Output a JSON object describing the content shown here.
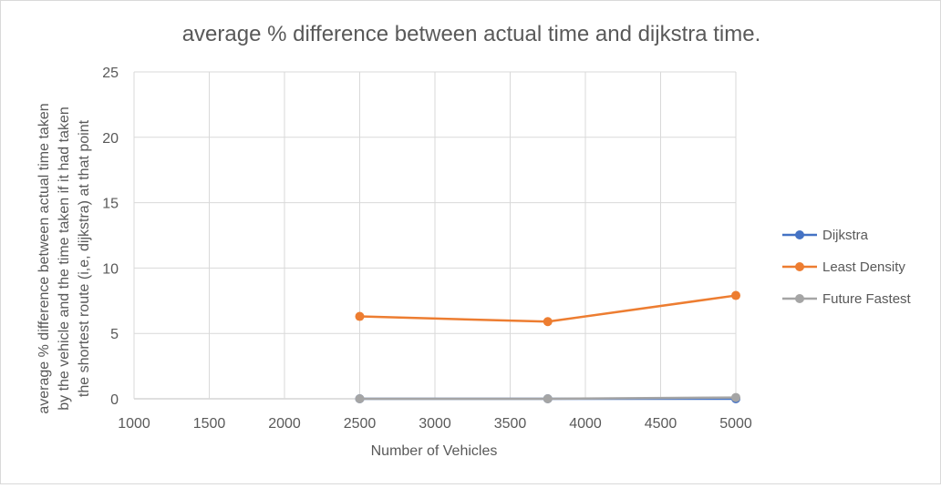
{
  "chart_data": {
    "type": "scatter",
    "title": "average % difference between actual time and dijkstra time.",
    "xlabel": "Number of Vehicles",
    "ylabel_lines": [
      "average % difference  between actual time taken",
      "by the vehicle and the time taken if it had taken",
      "the shortest route (i,e, dijkstra) at that point"
    ],
    "xlim": [
      1000,
      5000
    ],
    "ylim": [
      0,
      25
    ],
    "xticks": [
      1000,
      1500,
      2000,
      2500,
      3000,
      3500,
      4000,
      4500,
      5000
    ],
    "yticks": [
      0,
      5,
      10,
      15,
      20,
      25
    ],
    "grid": true,
    "legend_position": "right",
    "series": [
      {
        "name": "Dijkstra",
        "color": "#4472C4",
        "x": [
          2500,
          3750,
          5000
        ],
        "y": [
          0,
          0,
          0
        ]
      },
      {
        "name": "Least Density",
        "color": "#ED7D31",
        "x": [
          2500,
          3750,
          5000
        ],
        "y": [
          6.3,
          5.9,
          7.9
        ]
      },
      {
        "name": "Future Fastest",
        "color": "#A5A5A5",
        "x": [
          2500,
          3750,
          5000
        ],
        "y": [
          0,
          0,
          0.1
        ]
      }
    ]
  }
}
